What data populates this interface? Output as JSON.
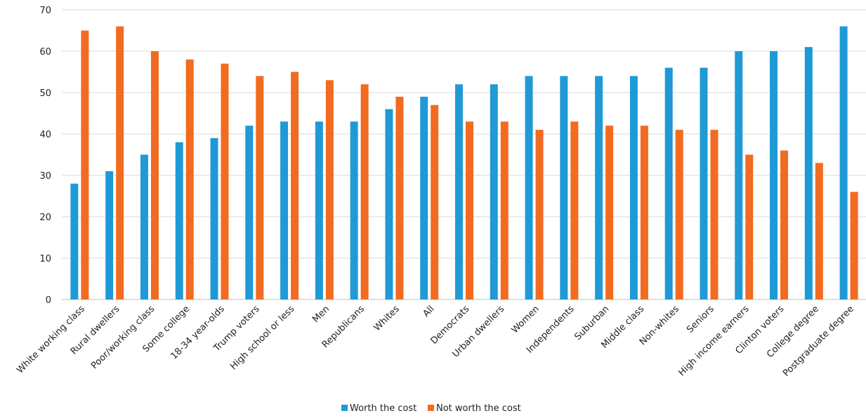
{
  "chart_data": {
    "type": "bar",
    "title": "",
    "xlabel": "",
    "ylabel": "",
    "ylim": [
      0,
      70
    ],
    "yticks": [
      0,
      10,
      20,
      30,
      40,
      50,
      60,
      70
    ],
    "grid": true,
    "legend_position": "bottom-center",
    "categories": [
      "White working class",
      "Rural dwellers",
      "Poor/working class",
      "Some college",
      "18-34 year-olds",
      "Trump voters",
      "High school or less",
      "Men",
      "Republicans",
      "Whites",
      "All",
      "Democrats",
      "Urban dwellers",
      "Women",
      "Independents",
      "Suburban",
      "Middle class",
      "Non-whites",
      "Seniors",
      "High income earners",
      "Clinton voters",
      "College degree",
      "Postgraduate degree"
    ],
    "series": [
      {
        "name": "Worth the cost",
        "color": "#1f9ad6",
        "values": [
          28,
          31,
          35,
          38,
          39,
          42,
          43,
          43,
          43,
          46,
          49,
          52,
          52,
          54,
          54,
          54,
          54,
          56,
          56,
          60,
          60,
          61,
          66
        ]
      },
      {
        "name": "Not worth the cost",
        "color": "#f26b21",
        "values": [
          65,
          66,
          60,
          58,
          57,
          54,
          55,
          53,
          52,
          49,
          47,
          43,
          43,
          41,
          43,
          42,
          42,
          41,
          41,
          35,
          36,
          33,
          26
        ]
      }
    ]
  }
}
